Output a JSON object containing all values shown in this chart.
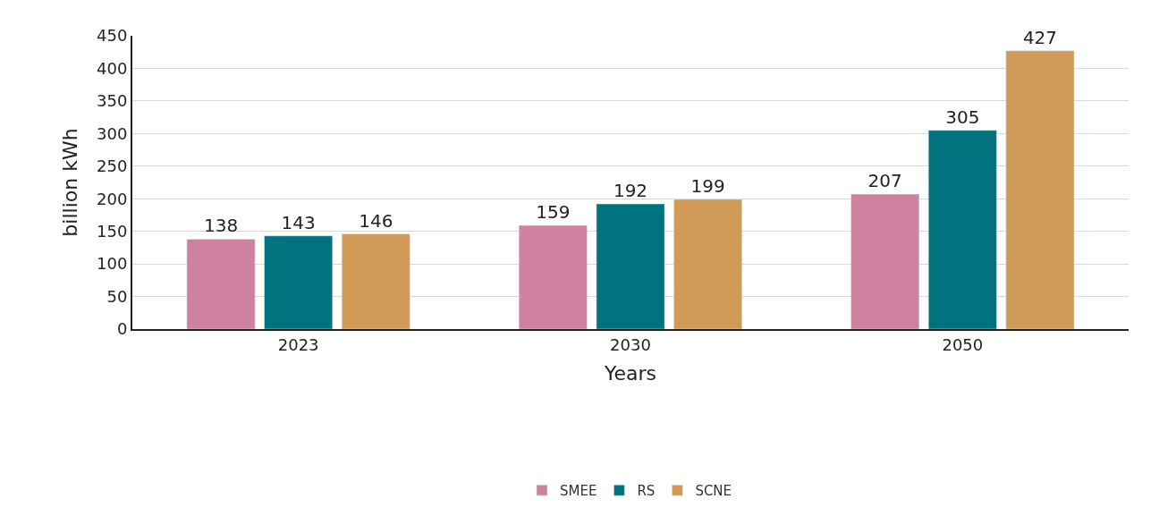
{
  "chart_data": {
    "type": "bar",
    "xlabel": "Years",
    "ylabel": "billion kWh",
    "categories": [
      "2023",
      "2030",
      "2050"
    ],
    "series": [
      {
        "name": "SMEE",
        "color": "#cf829f",
        "values": [
          138,
          159,
          207
        ]
      },
      {
        "name": "RS",
        "color": "#00737e",
        "values": [
          143,
          192,
          305
        ]
      },
      {
        "name": "SCNE",
        "color": "#cf9b57",
        "values": [
          146,
          199,
          427
        ]
      }
    ],
    "ylim": [
      0,
      450
    ],
    "yticks": [
      0,
      50,
      100,
      150,
      200,
      250,
      300,
      350,
      400,
      450
    ],
    "grid": "y",
    "legend": "bottom",
    "data_labels": true
  }
}
